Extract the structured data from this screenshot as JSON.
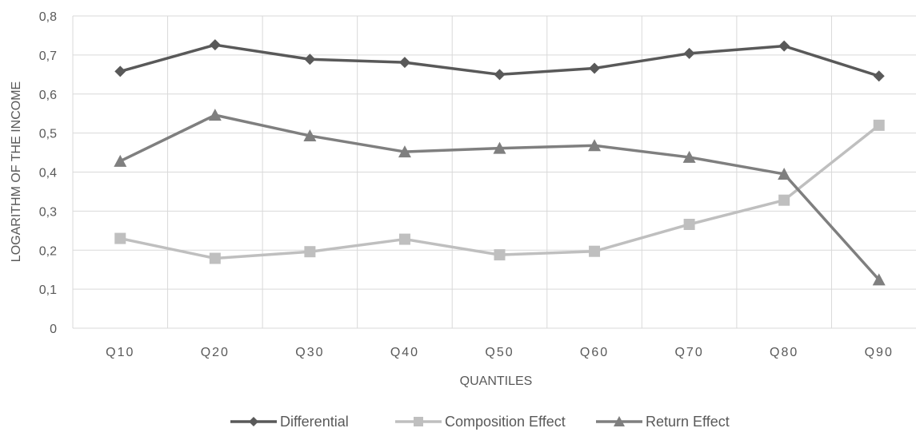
{
  "chart_data": {
    "type": "line",
    "title": "",
    "xlabel": "QUANTILES",
    "ylabel": "LOGARITHM OF THE INCOME",
    "categories": [
      "Q10",
      "Q20",
      "Q30",
      "Q40",
      "Q50",
      "Q60",
      "Q70",
      "Q80",
      "Q90"
    ],
    "ylim": [
      0,
      0.8
    ],
    "yticks": [
      "0",
      "0,1",
      "0,2",
      "0,3",
      "0,4",
      "0,5",
      "0,6",
      "0,7",
      "0,8"
    ],
    "grid": true,
    "legend_position": "bottom",
    "series": [
      {
        "name": "Differential",
        "color": "#595959",
        "marker": "diamond",
        "values": [
          0.658,
          0.726,
          0.689,
          0.681,
          0.65,
          0.666,
          0.704,
          0.723,
          0.646
        ]
      },
      {
        "name": "Composition Effect",
        "color": "#bfbfbf",
        "marker": "square",
        "values": [
          0.23,
          0.179,
          0.196,
          0.228,
          0.188,
          0.197,
          0.266,
          0.328,
          0.52
        ]
      },
      {
        "name": "Return Effect",
        "color": "#7f7f7f",
        "marker": "triangle",
        "values": [
          0.428,
          0.546,
          0.493,
          0.452,
          0.461,
          0.468,
          0.438,
          0.395,
          0.124
        ]
      }
    ]
  }
}
